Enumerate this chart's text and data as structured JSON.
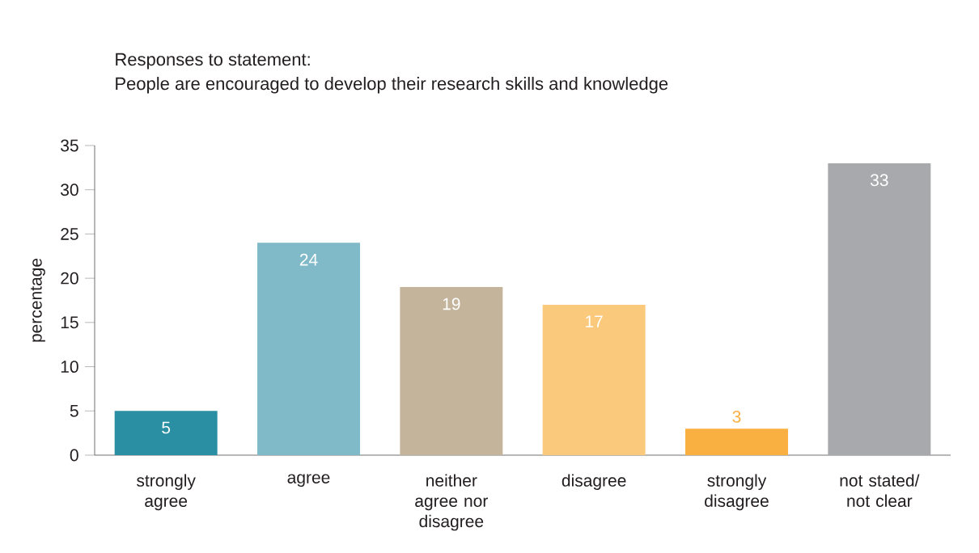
{
  "chart_data": {
    "type": "bar",
    "title": "Responses to statement:",
    "subtitle": "People are encouraged to develop their research skills and knowledge",
    "ylabel": "percentage",
    "categories": [
      "strongly agree",
      "agree",
      "neither agree nor disagree",
      "disagree",
      "strongly disagree",
      "not stated/ not clear"
    ],
    "values": [
      5,
      24,
      19,
      17,
      3,
      33
    ],
    "colors": [
      "#2a8fa3",
      "#80bac9",
      "#c4b49c",
      "#fbc97c",
      "#f9b040",
      "#a8a9ad"
    ],
    "ylim": [
      0,
      35
    ],
    "yticks": [
      0,
      5,
      10,
      15,
      20,
      25,
      30,
      35
    ],
    "data_labels": true,
    "grid": false
  }
}
